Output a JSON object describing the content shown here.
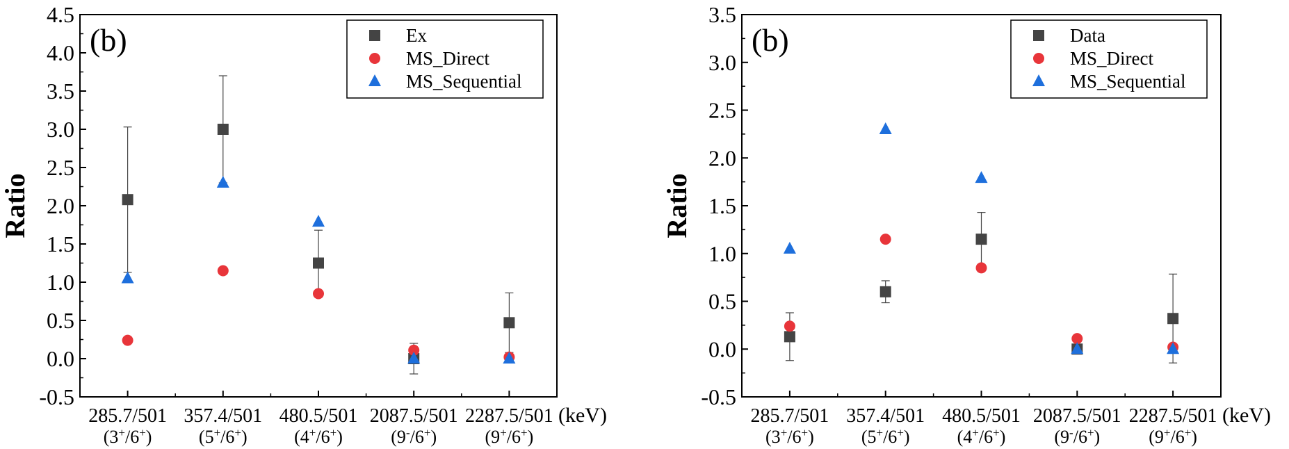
{
  "chart_data": [
    {
      "type": "scatter",
      "panel_label": "(b)",
      "ylabel": "Ratio",
      "xunit": "(keV)",
      "ylim": [
        -0.5,
        4.5
      ],
      "yticks": [
        "-0.5",
        "0.0",
        "0.5",
        "1.0",
        "1.5",
        "2.0",
        "2.5",
        "3.0",
        "3.5",
        "4.0",
        "4.5"
      ],
      "categories": [
        {
          "energy": "285.7/501",
          "spin": [
            "(3",
            "+",
            "/6",
            "+",
            ")"
          ]
        },
        {
          "energy": "357.4/501",
          "spin": [
            "(5",
            "+",
            "/6",
            "+",
            ")"
          ]
        },
        {
          "energy": "480.5/501",
          "spin": [
            "(4",
            "+",
            "/6",
            "+",
            ")"
          ]
        },
        {
          "energy": "2087.5/501",
          "spin": [
            "(9",
            "-",
            "/6",
            "+",
            ")"
          ]
        },
        {
          "energy": "2287.5/501",
          "spin": [
            "(9",
            "+",
            "/6",
            "+",
            ")"
          ]
        }
      ],
      "grid": false,
      "legend": "top-right",
      "series": [
        {
          "name": "Ex",
          "marker": "square",
          "color": "#444444",
          "values": [
            2.08,
            3.0,
            1.25,
            0.0,
            0.47
          ],
          "errors": [
            0.95,
            0.7,
            0.43,
            0.2,
            0.39
          ]
        },
        {
          "name": "MS_Direct",
          "marker": "circle",
          "color": "#e8353a",
          "values": [
            0.24,
            1.15,
            0.85,
            0.11,
            0.02
          ]
        },
        {
          "name": "MS_Sequential",
          "marker": "triangle",
          "color": "#1e6fdc",
          "values": [
            1.05,
            2.3,
            1.79,
            0.0,
            0.0
          ]
        }
      ]
    },
    {
      "type": "scatter",
      "panel_label": "(b)",
      "ylabel": "Ratio",
      "xunit": "(keV)",
      "ylim": [
        -0.5,
        3.5
      ],
      "yticks": [
        "-0.5",
        "0.0",
        "0.5",
        "1.0",
        "1.5",
        "2.0",
        "2.5",
        "3.0",
        "3.5"
      ],
      "categories": [
        {
          "energy": "285.7/501",
          "spin": [
            "(3",
            "+",
            "/6",
            "+",
            ")"
          ]
        },
        {
          "energy": "357.4/501",
          "spin": [
            "(5",
            "+",
            "/6",
            "+",
            ")"
          ]
        },
        {
          "energy": "480.5/501",
          "spin": [
            "(4",
            "+",
            "/6",
            "+",
            ")"
          ]
        },
        {
          "energy": "2087.5/501",
          "spin": [
            "(9",
            "-",
            "/6",
            "+",
            ")"
          ]
        },
        {
          "energy": "2287.5/501",
          "spin": [
            "(9",
            "+",
            "/6",
            "+",
            ")"
          ]
        }
      ],
      "grid": false,
      "legend": "top-right",
      "series": [
        {
          "name": "Data",
          "marker": "square",
          "color": "#444444",
          "values": [
            0.13,
            0.6,
            1.15,
            0.0,
            0.32
          ],
          "errors": [
            0.25,
            0.115,
            0.28,
            0,
            0.465
          ]
        },
        {
          "name": "MS_Direct",
          "marker": "circle",
          "color": "#e8353a",
          "values": [
            0.24,
            1.15,
            0.85,
            0.11,
            0.02
          ]
        },
        {
          "name": "MS_Sequential",
          "marker": "triangle",
          "color": "#1e6fdc",
          "values": [
            1.05,
            2.3,
            1.79,
            0.0,
            0.0
          ]
        }
      ]
    }
  ]
}
